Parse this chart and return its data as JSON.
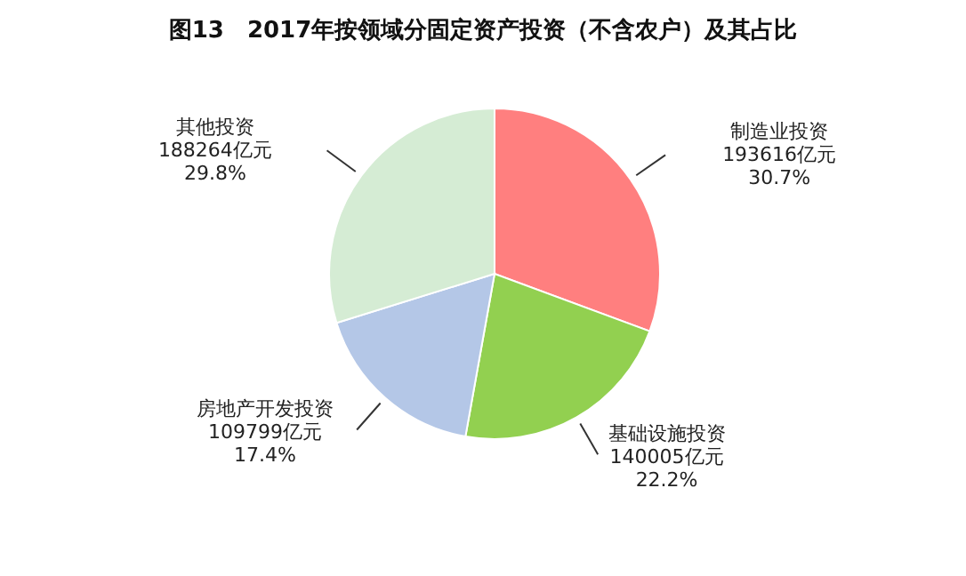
{
  "chart_data": {
    "type": "pie",
    "title": "图13　2017年按领域分固定资产投资（不含农户）及其占比",
    "categories": [
      "制造业投资",
      "基础设施投资",
      "房地产开发投资",
      "其他投资"
    ],
    "values": [
      193616,
      140005,
      109799,
      188264
    ],
    "value_labels": [
      "193616亿元\n30.7%",
      "140005亿元\n22.2%",
      "109799亿元\n17.4%",
      "188264亿元\n29.8%"
    ],
    "colors": [
      "#ff7f7f",
      "#92d050",
      "#b4c7e7",
      "#d5ecd4"
    ],
    "legend": false
  }
}
